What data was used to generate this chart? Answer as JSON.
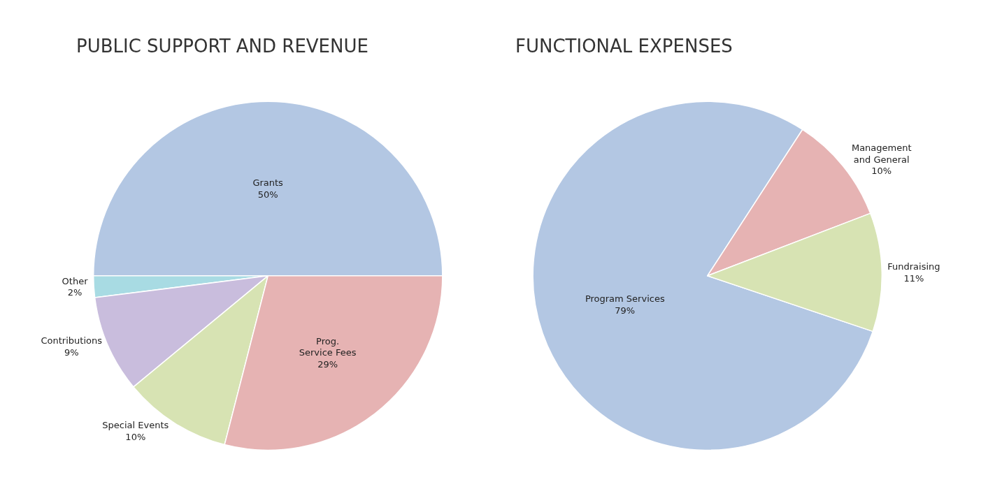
{
  "chart_data": [
    {
      "type": "pie",
      "title": "PUBLIC SUPPORT AND REVENUE",
      "categories": [
        "Grants",
        "Other",
        "Contributions",
        "Special Events",
        "Prog. Service Fees"
      ],
      "values": [
        50,
        2,
        9,
        10,
        29
      ],
      "value_labels": [
        "50%",
        "2%",
        "9%",
        "10%",
        "29%"
      ],
      "colors": [
        "#b3c7e3",
        "#a8dbe3",
        "#c9bddd",
        "#d7e3b3",
        "#e6b3b3"
      ]
    },
    {
      "type": "pie",
      "title": "FUNCTIONAL EXPENSES",
      "categories": [
        "Program Services",
        "Management and General",
        "Fundraising"
      ],
      "values": [
        79,
        10,
        11
      ],
      "value_labels": [
        "79%",
        "10%",
        "11%"
      ],
      "colors": [
        "#b3c7e3",
        "#e6b3b3",
        "#d7e3b3"
      ]
    }
  ]
}
